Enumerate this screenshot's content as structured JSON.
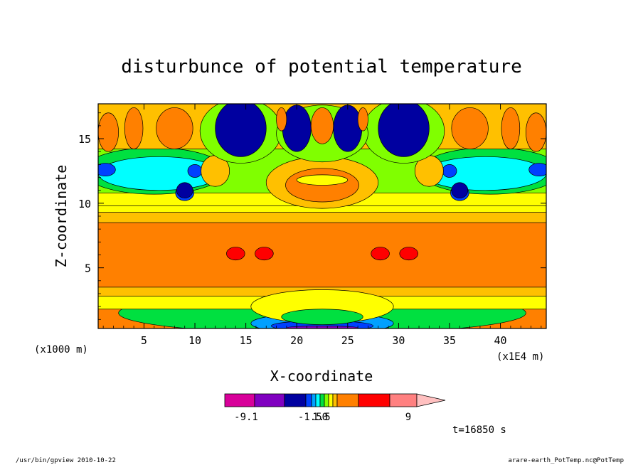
{
  "chart_data": {
    "type": "heatmap",
    "title": "disturbunce of potential temperature",
    "xlabel": "X-coordinate",
    "ylabel": "Z-coordinate",
    "x_unit_left": "(x1000 m)",
    "x_unit_right": "(x1E4 m)",
    "xlim": [
      0.5,
      44.5
    ],
    "ylim": [
      0.3,
      17.7
    ],
    "x_ticks": [
      5,
      10,
      15,
      20,
      25,
      30,
      35,
      40
    ],
    "y_ticks": [
      5,
      10,
      15
    ],
    "time_label": "t=16850 s",
    "colorbar": {
      "tick_labels": [
        "-9.1",
        "-1.50",
        "1.5",
        "9"
      ],
      "colors": [
        "#d8009a",
        "#8000c0",
        "#0000a0",
        "#0040ff",
        "#00a0ff",
        "#00ffff",
        "#00e040",
        "#80ff00",
        "#ffff00",
        "#ffc000",
        "#ff8000",
        "#ff0000",
        "#ff8080",
        "#ffc0c0"
      ]
    },
    "regions": [
      {
        "level": 6,
        "shape": "ellipse",
        "cx": 22.5,
        "cy": 1.5,
        "rx": 20,
        "ry": 1.6
      },
      {
        "level": 4,
        "shape": "ellipse",
        "cx": 22.5,
        "cy": 0.7,
        "rx": 7,
        "ry": 0.8
      },
      {
        "level": 3,
        "shape": "ellipse",
        "cx": 22.5,
        "cy": 0.5,
        "rx": 5,
        "ry": 0.4
      },
      {
        "level": 1,
        "shape": "ellipse",
        "cx": 22.5,
        "cy": 0.35,
        "rx": 3.5,
        "ry": 0.15
      },
      {
        "level": 8,
        "shape": "rect",
        "x0": 0.5,
        "y0": 1.8,
        "x1": 44.5,
        "y1": 10.5
      },
      {
        "level": 9,
        "shape": "rect",
        "x0": 0.5,
        "y0": 2.8,
        "x1": 44.5,
        "y1": 9.3
      },
      {
        "level": 10,
        "shape": "rect",
        "x0": 0.5,
        "y0": 3.5,
        "x1": 44.5,
        "y1": 8.5
      },
      {
        "level": 8,
        "shape": "ellipse",
        "cx": 22.5,
        "cy": 2.0,
        "rx": 7,
        "ry": 1.3
      },
      {
        "level": 6,
        "shape": "ellipse",
        "cx": 22.5,
        "cy": 1.2,
        "rx": 4,
        "ry": 0.6
      },
      {
        "level": 11,
        "shape": "ellipse",
        "cx": 14,
        "cy": 6.1,
        "rx": 0.9,
        "ry": 0.5
      },
      {
        "level": 11,
        "shape": "ellipse",
        "cx": 16.8,
        "cy": 6.1,
        "rx": 0.9,
        "ry": 0.5
      },
      {
        "level": 11,
        "shape": "ellipse",
        "cx": 28.2,
        "cy": 6.1,
        "rx": 0.9,
        "ry": 0.5
      },
      {
        "level": 11,
        "shape": "ellipse",
        "cx": 31,
        "cy": 6.1,
        "rx": 0.9,
        "ry": 0.5
      },
      {
        "level": 8,
        "shape": "rect",
        "x0": 0.5,
        "y0": 9.8,
        "x1": 44.5,
        "y1": 17.7
      },
      {
        "level": 7,
        "shape": "rect",
        "x0": 0.5,
        "y0": 10.8,
        "x1": 44.5,
        "y1": 14.2
      },
      {
        "level": 6,
        "shape": "ellipse",
        "cx": 6,
        "cy": 12.5,
        "rx": 7,
        "ry": 1.8
      },
      {
        "level": 6,
        "shape": "ellipse",
        "cx": 39,
        "cy": 12.5,
        "rx": 7,
        "ry": 1.8
      },
      {
        "level": 5,
        "shape": "ellipse",
        "cx": 6.5,
        "cy": 12.3,
        "rx": 6,
        "ry": 1.3
      },
      {
        "level": 5,
        "shape": "ellipse",
        "cx": 38.5,
        "cy": 12.3,
        "rx": 6,
        "ry": 1.3
      },
      {
        "level": 3,
        "shape": "ellipse",
        "cx": 1.2,
        "cy": 12.6,
        "rx": 1.0,
        "ry": 0.5
      },
      {
        "level": 3,
        "shape": "ellipse",
        "cx": 43.8,
        "cy": 12.6,
        "rx": 1.0,
        "ry": 0.5
      },
      {
        "level": 3,
        "shape": "ellipse",
        "cx": 9,
        "cy": 10.8,
        "rx": 0.9,
        "ry": 0.6
      },
      {
        "level": 3,
        "shape": "ellipse",
        "cx": 36,
        "cy": 10.8,
        "rx": 0.9,
        "ry": 0.6
      },
      {
        "level": 3,
        "shape": "ellipse",
        "cx": 10,
        "cy": 12.5,
        "rx": 0.7,
        "ry": 0.5
      },
      {
        "level": 3,
        "shape": "ellipse",
        "cx": 35,
        "cy": 12.5,
        "rx": 0.7,
        "ry": 0.5
      },
      {
        "level": 9,
        "shape": "ellipse",
        "cx": 12,
        "cy": 12.5,
        "rx": 1.4,
        "ry": 1.2
      },
      {
        "level": 9,
        "shape": "ellipse",
        "cx": 33,
        "cy": 12.5,
        "rx": 1.4,
        "ry": 1.2
      },
      {
        "level": 9,
        "shape": "ellipse",
        "cx": 22.5,
        "cy": 11.6,
        "rx": 5.5,
        "ry": 2.0
      },
      {
        "level": 10,
        "shape": "ellipse",
        "cx": 22.5,
        "cy": 11.4,
        "rx": 3.6,
        "ry": 1.3
      },
      {
        "level": 8,
        "shape": "ellipse",
        "cx": 22.5,
        "cy": 11.8,
        "rx": 2.5,
        "ry": 0.4
      },
      {
        "level": 9,
        "shape": "rect",
        "x0": 0.5,
        "y0": 14.2,
        "x1": 44.5,
        "y1": 17.7
      },
      {
        "level": 10,
        "shape": "ellipse",
        "cx": 1.5,
        "cy": 15.5,
        "rx": 1.0,
        "ry": 1.5
      },
      {
        "level": 10,
        "shape": "ellipse",
        "cx": 43.5,
        "cy": 15.5,
        "rx": 1.0,
        "ry": 1.5
      },
      {
        "level": 10,
        "shape": "ellipse",
        "cx": 4,
        "cy": 15.8,
        "rx": 0.9,
        "ry": 1.6
      },
      {
        "level": 10,
        "shape": "ellipse",
        "cx": 41,
        "cy": 15.8,
        "rx": 0.9,
        "ry": 1.6
      },
      {
        "level": 10,
        "shape": "ellipse",
        "cx": 8,
        "cy": 15.8,
        "rx": 1.8,
        "ry": 1.6
      },
      {
        "level": 10,
        "shape": "ellipse",
        "cx": 37,
        "cy": 15.8,
        "rx": 1.8,
        "ry": 1.6
      },
      {
        "level": 7,
        "shape": "ellipse",
        "cx": 14.5,
        "cy": 15.6,
        "rx": 4.0,
        "ry": 2.5
      },
      {
        "level": 7,
        "shape": "ellipse",
        "cx": 30.5,
        "cy": 15.6,
        "rx": 4.0,
        "ry": 2.5
      },
      {
        "level": 7,
        "shape": "ellipse",
        "cx": 22.5,
        "cy": 15.4,
        "rx": 4.5,
        "ry": 2.2
      },
      {
        "level": 2,
        "shape": "ellipse",
        "cx": 14.5,
        "cy": 15.8,
        "rx": 2.5,
        "ry": 2.2
      },
      {
        "level": 2,
        "shape": "ellipse",
        "cx": 30.5,
        "cy": 15.8,
        "rx": 2.5,
        "ry": 2.2
      },
      {
        "level": 2,
        "shape": "ellipse",
        "cx": 20,
        "cy": 15.8,
        "rx": 1.4,
        "ry": 1.8
      },
      {
        "level": 2,
        "shape": "ellipse",
        "cx": 25,
        "cy": 15.8,
        "rx": 1.4,
        "ry": 1.8
      },
      {
        "level": 10,
        "shape": "ellipse",
        "cx": 22.5,
        "cy": 16,
        "rx": 1.1,
        "ry": 1.4
      },
      {
        "level": 10,
        "shape": "ellipse",
        "cx": 18.5,
        "cy": 16.5,
        "rx": 0.5,
        "ry": 0.9
      },
      {
        "level": 10,
        "shape": "ellipse",
        "cx": 26.5,
        "cy": 16.5,
        "rx": 0.5,
        "ry": 0.9
      },
      {
        "level": 2,
        "shape": "ellipse",
        "cx": 9,
        "cy": 11.0,
        "rx": 0.8,
        "ry": 0.6
      },
      {
        "level": 2,
        "shape": "ellipse",
        "cx": 36,
        "cy": 11.0,
        "rx": 0.8,
        "ry": 0.6
      }
    ]
  },
  "footer": {
    "left": "/usr/bin/gpview  2010-10-22",
    "right": "arare-earth_PotTemp.nc@PotTemp"
  }
}
